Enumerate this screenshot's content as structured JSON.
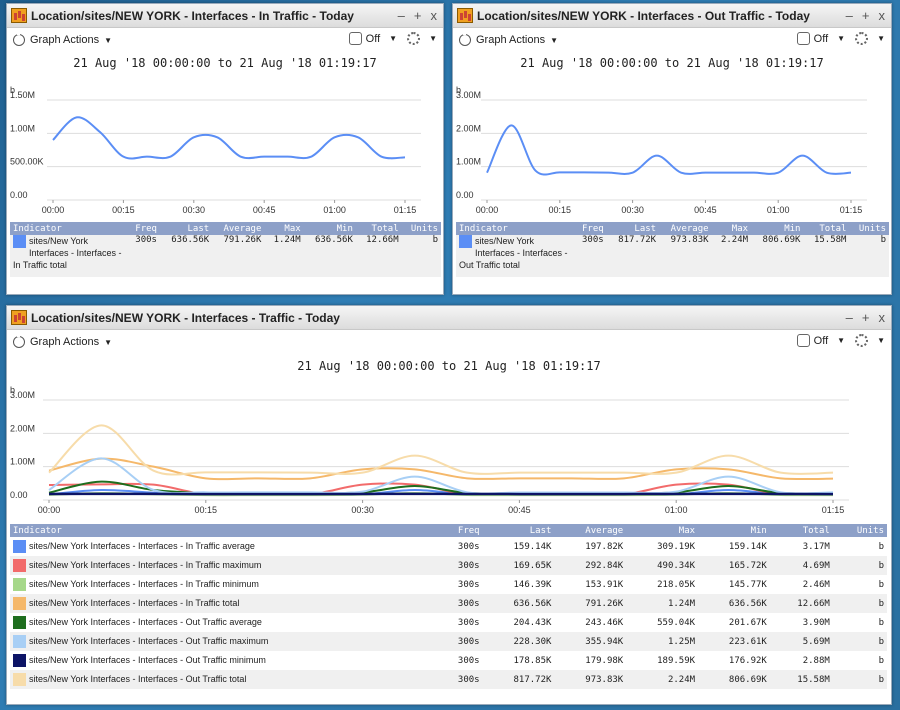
{
  "panels": {
    "in": {
      "title": "Location/sites/NEW YORK - Interfaces - In Traffic - Today",
      "date_range": "21 Aug '18 00:00:00 to 21 Aug '18 01:19:17",
      "unit_label": "b",
      "legend_row": {
        "ind1": "sites/New York",
        "ind2": "Interfaces - Interfaces -",
        "ind3": "In Traffic total",
        "freq": "300s",
        "last": "636.56K",
        "avg": "791.26K",
        "max": "1.24M",
        "min": "636.56K",
        "total": "12.66M",
        "units": "b"
      }
    },
    "out": {
      "title": "Location/sites/NEW YORK - Interfaces - Out Traffic - Today",
      "date_range": "21 Aug '18 00:00:00 to 21 Aug '18 01:19:17",
      "unit_label": "b",
      "legend_row": {
        "ind1": "sites/New York",
        "ind2": "Interfaces - Interfaces -",
        "ind3": "Out Traffic total",
        "freq": "300s",
        "last": "817.72K",
        "avg": "973.83K",
        "max": "2.24M",
        "min": "806.69K",
        "total": "15.58M",
        "units": "b"
      }
    },
    "traffic": {
      "title": "Location/sites/NEW YORK - Interfaces - Traffic - Today",
      "date_range": "21 Aug '18 00:00:00 to 21 Aug '18 01:19:17",
      "unit_label": "b",
      "rows": [
        {
          "name": "sites/New York Interfaces - Interfaces - In Traffic average",
          "color": "#5b8ef5",
          "freq": "300s",
          "last": "159.14K",
          "avg": "197.82K",
          "max": "309.19K",
          "min": "159.14K",
          "total": "3.17M",
          "units": "b"
        },
        {
          "name": "sites/New York Interfaces - Interfaces - In Traffic maximum",
          "color": "#f26b6b",
          "freq": "300s",
          "last": "169.65K",
          "avg": "292.84K",
          "max": "490.34K",
          "min": "165.72K",
          "total": "4.69M",
          "units": "b"
        },
        {
          "name": "sites/New York Interfaces - Interfaces - In Traffic minimum",
          "color": "#a6d88a",
          "freq": "300s",
          "last": "146.39K",
          "avg": "153.91K",
          "max": "218.05K",
          "min": "145.77K",
          "total": "2.46M",
          "units": "b"
        },
        {
          "name": "sites/New York Interfaces - Interfaces - In Traffic total",
          "color": "#f5b86a",
          "freq": "300s",
          "last": "636.56K",
          "avg": "791.26K",
          "max": "1.24M",
          "min": "636.56K",
          "total": "12.66M",
          "units": "b"
        },
        {
          "name": "sites/New York Interfaces - Interfaces - Out Traffic average",
          "color": "#1e6e1e",
          "freq": "300s",
          "last": "204.43K",
          "avg": "243.46K",
          "max": "559.04K",
          "min": "201.67K",
          "total": "3.90M",
          "units": "b"
        },
        {
          "name": "sites/New York Interfaces - Interfaces - Out Traffic maximum",
          "color": "#a8cff5",
          "freq": "300s",
          "last": "228.30K",
          "avg": "355.94K",
          "max": "1.25M",
          "min": "223.61K",
          "total": "5.69M",
          "units": "b"
        },
        {
          "name": "sites/New York Interfaces - Interfaces - Out Traffic minimum",
          "color": "#0d1466",
          "freq": "300s",
          "last": "178.85K",
          "avg": "179.98K",
          "max": "189.59K",
          "min": "176.92K",
          "total": "2.88M",
          "units": "b"
        },
        {
          "name": "sites/New York Interfaces - Interfaces - Out Traffic total",
          "color": "#f7dcaa",
          "freq": "300s",
          "last": "817.72K",
          "avg": "973.83K",
          "max": "2.24M",
          "min": "806.69K",
          "total": "15.58M",
          "units": "b"
        }
      ]
    }
  },
  "toolbar": {
    "graph_actions": "Graph Actions",
    "refresh": "Off"
  },
  "window_buttons": {
    "minimize": "–",
    "maximize": "+",
    "close": "x"
  },
  "legend_headers": {
    "indicator": "Indicator",
    "freq": "Freq",
    "last": "Last",
    "average": "Average",
    "max": "Max",
    "min": "Min",
    "total": "Total",
    "units": "Units"
  },
  "colors": {
    "in_total": "#5b8ef5",
    "out_total": "#5b8ef5"
  },
  "chart_data": [
    {
      "type": "line",
      "name": "in",
      "x": [
        "00:00",
        "00:05",
        "00:10",
        "00:15",
        "00:20",
        "00:25",
        "00:30",
        "00:35",
        "00:40",
        "00:45",
        "00:50",
        "00:55",
        "01:00",
        "01:05",
        "01:10",
        "01:15"
      ],
      "x_tick_labels": [
        "00:00",
        "00:15",
        "00:30",
        "00:45",
        "01:00",
        "01:15"
      ],
      "y_tick_labels": [
        "0.00",
        "500.00K",
        "1.00M",
        "1.50M"
      ],
      "ylim": [
        0,
        1500000
      ],
      "series": [
        {
          "values": [
            900000,
            1240000,
            1020000,
            650000,
            650000,
            650000,
            940000,
            940000,
            650000,
            650000,
            650000,
            650000,
            940000,
            940000,
            650000,
            640000
          ]
        }
      ]
    },
    {
      "type": "line",
      "name": "out",
      "x": [
        "00:00",
        "00:05",
        "00:10",
        "00:15",
        "00:20",
        "00:25",
        "00:30",
        "00:35",
        "00:40",
        "00:45",
        "00:50",
        "00:55",
        "01:00",
        "01:05",
        "01:10",
        "01:15"
      ],
      "x_tick_labels": [
        "00:00",
        "00:15",
        "00:30",
        "00:45",
        "01:00",
        "01:15"
      ],
      "y_tick_labels": [
        "0.00",
        "1.00M",
        "2.00M",
        "3.00M"
      ],
      "ylim": [
        0,
        3000000
      ],
      "series": [
        {
          "values": [
            820000,
            2240000,
            880000,
            830000,
            830000,
            820000,
            820000,
            1330000,
            820000,
            820000,
            820000,
            820000,
            820000,
            1330000,
            820000,
            820000
          ]
        }
      ]
    },
    {
      "type": "line",
      "name": "traffic",
      "x": [
        "00:00",
        "00:05",
        "00:10",
        "00:15",
        "00:20",
        "00:25",
        "00:30",
        "00:35",
        "00:40",
        "00:45",
        "00:50",
        "00:55",
        "01:00",
        "01:05",
        "01:10",
        "01:15"
      ],
      "x_tick_labels": [
        "00:00",
        "00:15",
        "00:30",
        "00:45",
        "01:00",
        "01:15"
      ],
      "y_tick_labels": [
        "0.00",
        "1.00M",
        "2.00M",
        "3.00M"
      ],
      "ylim": [
        0,
        3000000
      ],
      "series": [
        {
          "color": "#5b8ef5",
          "values": [
            170000,
            300000,
            220000,
            160000,
            160000,
            160000,
            170000,
            300000,
            170000,
            160000,
            160000,
            160000,
            170000,
            300000,
            170000,
            160000
          ]
        },
        {
          "color": "#f26b6b",
          "values": [
            450000,
            470000,
            460000,
            170000,
            170000,
            170000,
            460000,
            460000,
            170000,
            170000,
            170000,
            170000,
            460000,
            460000,
            170000,
            170000
          ]
        },
        {
          "color": "#a6d88a",
          "values": [
            150000,
            210000,
            170000,
            146000,
            146000,
            146000,
            160000,
            210000,
            150000,
            146000,
            146000,
            146000,
            160000,
            210000,
            150000,
            146000
          ]
        },
        {
          "color": "#f5b86a",
          "values": [
            880000,
            1240000,
            1000000,
            650000,
            650000,
            650000,
            920000,
            920000,
            650000,
            650000,
            650000,
            650000,
            920000,
            920000,
            650000,
            640000
          ]
        },
        {
          "color": "#1e6e1e",
          "values": [
            220000,
            550000,
            300000,
            210000,
            210000,
            210000,
            230000,
            420000,
            210000,
            205000,
            205000,
            205000,
            230000,
            420000,
            210000,
            205000
          ]
        },
        {
          "color": "#a8cff5",
          "values": [
            300000,
            1250000,
            300000,
            230000,
            230000,
            230000,
            250000,
            700000,
            230000,
            225000,
            225000,
            225000,
            250000,
            700000,
            230000,
            228000
          ]
        },
        {
          "color": "#0d1466",
          "values": [
            180000,
            185000,
            182000,
            178000,
            178000,
            178000,
            180000,
            185000,
            180000,
            178000,
            178000,
            178000,
            180000,
            185000,
            180000,
            178000
          ]
        },
        {
          "color": "#f7dcaa",
          "values": [
            820000,
            2240000,
            880000,
            830000,
            830000,
            820000,
            820000,
            1330000,
            820000,
            820000,
            820000,
            820000,
            820000,
            1330000,
            820000,
            820000
          ]
        }
      ]
    }
  ]
}
